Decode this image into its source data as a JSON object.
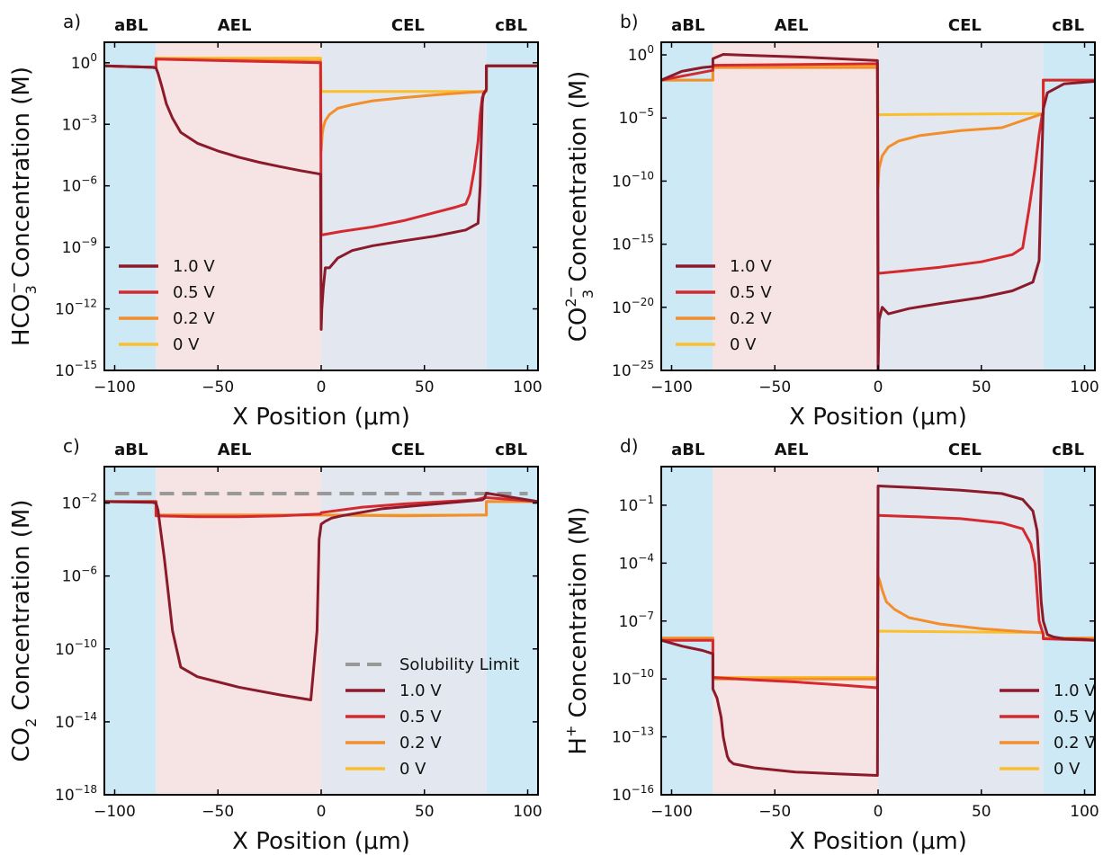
{
  "colors": {
    "bl_region": "#cde9f5",
    "ael_region": "#f6e4e4",
    "cel_region": "#e3e7f0",
    "v1_0": "#8b1a2b",
    "v0_5": "#d42a2f",
    "v0_2": "#f28e2b",
    "v0": "#fbbf2c",
    "solubility": "#999999"
  },
  "region_labels": {
    "abl": "aBL",
    "ael": "AEL",
    "cel": "CEL",
    "cbl": "cBL"
  },
  "x_ticks": [
    "−100",
    "−50",
    "0",
    "50",
    "100"
  ],
  "chart_data": [
    {
      "type": "line",
      "panel": "a)",
      "ylabel_main": "HCO",
      "ylabel_sub": "3",
      "ylabel_sup": "−",
      "ylabel_rest": " Concentration (M)",
      "xlabel": "X Position (μm)",
      "xlim": [
        -105,
        105
      ],
      "ylim_log10": [
        -15,
        1
      ],
      "yscale": "log",
      "y_ticks": [
        {
          "mant": "10",
          "exp": "0"
        },
        {
          "mant": "10",
          "exp": "−3"
        },
        {
          "mant": "10",
          "exp": "−6"
        },
        {
          "mant": "10",
          "exp": "−9"
        },
        {
          "mant": "10",
          "exp": "−12"
        },
        {
          "mant": "10",
          "exp": "−15"
        }
      ],
      "legend_position": "lower-left",
      "series": [
        {
          "name": "1.0 V",
          "x": [
            -105,
            -82,
            -80,
            -79,
            -77,
            -75,
            -72,
            -68,
            -60,
            -50,
            -40,
            -30,
            -20,
            -10,
            -0.3,
            0,
            0.3,
            1,
            2,
            4,
            8,
            15,
            25,
            40,
            55,
            70,
            76,
            77,
            78,
            78.5,
            80,
            80.01,
            105
          ],
          "y": [
            0.7,
            0.6,
            0.55,
            0.3,
            0.06,
            0.01,
            0.002,
            0.0004,
            0.00012,
            5e-05,
            2.5e-05,
            1.4e-05,
            8.7e-06,
            5.5e-06,
            3.7e-06,
            1e-13,
            1e-12,
            1e-11,
            1e-10,
            1e-10,
            3e-10,
            7e-10,
            1.2e-09,
            2.1e-09,
            3.5e-09,
            7e-09,
            1.5e-08,
            1e-06,
            0.01,
            0.03,
            0.05,
            0.7,
            0.7
          ]
        },
        {
          "name": "0.5 V",
          "x": [
            -105,
            -80,
            -80,
            -0.3,
            0,
            0.2,
            10,
            25,
            40,
            55,
            65,
            70,
            72,
            74,
            76,
            77,
            78,
            80,
            80.01,
            105
          ],
          "y": [
            0.7,
            0.6,
            1.5,
            1,
            4e-09,
            4e-09,
            6e-09,
            1e-08,
            2e-08,
            5e-08,
            9e-08,
            1.3e-07,
            4e-07,
            5e-06,
            0.00015,
            0.003,
            0.02,
            0.05,
            0.7,
            0.7
          ]
        },
        {
          "name": "0.2 V",
          "x": [
            -105,
            -80,
            -80,
            -0.3,
            0,
            0.5,
            1,
            2,
            4,
            8,
            15,
            25,
            40,
            55,
            70,
            80,
            80.01,
            105
          ],
          "y": [
            0.7,
            0.6,
            1.6,
            1.2,
            5e-05,
            0.0003,
            0.0007,
            0.0015,
            0.003,
            0.006,
            0.009,
            0.014,
            0.02,
            0.027,
            0.035,
            0.04,
            0.7,
            0.7
          ]
        },
        {
          "name": "0 V",
          "x": [
            -105,
            -80,
            -80,
            -0.3,
            0,
            80,
            80.01,
            105
          ],
          "y": [
            0.7,
            0.6,
            1.7,
            1.7,
            0.04,
            0.04,
            0.7,
            0.7
          ]
        }
      ]
    },
    {
      "type": "line",
      "panel": "b)",
      "ylabel_main": "CO",
      "ylabel_sub": "3",
      "ylabel_sup": "2−",
      "ylabel_rest": " Concentration (M)",
      "xlabel": "X Position (μm)",
      "xlim": [
        -105,
        105
      ],
      "ylim_log10": [
        -25,
        1
      ],
      "yscale": "log",
      "y_ticks": [
        {
          "mant": "10",
          "exp": "0"
        },
        {
          "mant": "10",
          "exp": "−5"
        },
        {
          "mant": "10",
          "exp": "−10"
        },
        {
          "mant": "10",
          "exp": "−15"
        },
        {
          "mant": "10",
          "exp": "−20"
        },
        {
          "mant": "10",
          "exp": "−25"
        }
      ],
      "legend_position": "lower-left",
      "series": [
        {
          "name": "1.0 V",
          "x": [
            -105,
            -95,
            -85,
            -80,
            -80,
            -75,
            -60,
            -40,
            -20,
            -0.3,
            0,
            0.5,
            2,
            5,
            15,
            30,
            50,
            65,
            75,
            78,
            79,
            80,
            82,
            90,
            105
          ],
          "y": [
            0.01,
            0.05,
            0.1,
            0.12,
            0.5,
            1.1,
            0.9,
            0.7,
            0.5,
            0.35,
            1e-25,
            1e-21,
            1e-20,
            3e-21,
            8e-21,
            2e-20,
            6e-20,
            2e-19,
            1e-18,
            5e-17,
            1e-10,
            5e-05,
            0.001,
            0.005,
            0.008
          ]
        },
        {
          "name": "0.5 V",
          "x": [
            -105,
            -80,
            -80,
            -0.3,
            0,
            1,
            10,
            30,
            50,
            65,
            70,
            73,
            76,
            78,
            79.5,
            80,
            80.01,
            105
          ],
          "y": [
            0.01,
            0.06,
            0.15,
            0.2,
            5e-18,
            5e-18,
            7e-18,
            1.5e-17,
            4e-17,
            1.5e-16,
            5e-16,
            5e-13,
            1e-09,
            5e-07,
            2e-05,
            2e-05,
            0.01,
            0.01
          ]
        },
        {
          "name": "0.2 V",
          "x": [
            -105,
            -80,
            -80,
            -0.3,
            0,
            0.5,
            2,
            5,
            10,
            20,
            40,
            60,
            80,
            80.01,
            105
          ],
          "y": [
            0.01,
            0.01,
            0.1,
            0.1,
            3e-11,
            1e-09,
            1e-08,
            5e-08,
            1.5e-07,
            4e-07,
            1e-06,
            1.7e-06,
            2.3e-05,
            0.01,
            0.01
          ]
        },
        {
          "name": "0 V",
          "x": [
            -105,
            -80,
            -80,
            -0.3,
            0,
            80,
            80.01,
            105
          ],
          "y": [
            0.01,
            0.01,
            0.12,
            0.12,
            1.8e-05,
            2.3e-05,
            0.01,
            0.01
          ]
        }
      ]
    },
    {
      "type": "line",
      "panel": "c)",
      "ylabel_main": "CO",
      "ylabel_sub": "2",
      "ylabel_sup": "",
      "ylabel_rest": " Concentration (M)",
      "xlabel": "X Position (μm)",
      "xlim": [
        -105,
        105
      ],
      "ylim_log10": [
        -18,
        0
      ],
      "yscale": "log",
      "y_ticks": [
        {
          "mant": "10",
          "exp": "−2"
        },
        {
          "mant": "10",
          "exp": "−6"
        },
        {
          "mant": "10",
          "exp": "−10"
        },
        {
          "mant": "10",
          "exp": "−14"
        },
        {
          "mant": "10",
          "exp": "−18"
        }
      ],
      "legend_position": "lower-right",
      "reference_line": {
        "name": "Solubility Limit",
        "y": 0.033
      },
      "series": [
        {
          "name": "1.0 V",
          "x": [
            -105,
            -82,
            -80,
            -79,
            -78,
            -76,
            -74,
            -72,
            -70,
            -68,
            -60,
            -40,
            -20,
            -5,
            -2,
            -1,
            0,
            2,
            5,
            10,
            30,
            60,
            78,
            79,
            80,
            105
          ],
          "y": [
            0.012,
            0.011,
            0.01,
            0.004,
            0.0005,
            1e-05,
            1e-07,
            1e-09,
            1e-10,
            1e-11,
            3e-12,
            8e-13,
            3e-13,
            1.6e-13,
            1e-09,
            0.0001,
            0.0007,
            0.001,
            0.0015,
            0.002,
            0.005,
            0.01,
            0.015,
            0.018,
            0.035,
            0.012
          ]
        },
        {
          "name": "0.5 V",
          "x": [
            -105,
            -80,
            -80,
            -60,
            -40,
            -20,
            -0.3,
            0,
            20,
            40,
            60,
            75,
            79,
            80,
            105
          ],
          "y": [
            0.012,
            0.012,
            0.002,
            0.0018,
            0.0018,
            0.002,
            0.0025,
            0.003,
            0.006,
            0.009,
            0.012,
            0.015,
            0.02,
            0.02,
            0.012
          ]
        },
        {
          "name": "0.2 V",
          "x": [
            -105,
            -80,
            -80,
            -0.3,
            0,
            40,
            75,
            80,
            80.01,
            105
          ],
          "y": [
            0.012,
            0.012,
            0.0022,
            0.0022,
            0.0022,
            0.002,
            0.0022,
            0.0022,
            0.012,
            0.012
          ]
        },
        {
          "name": "0 V",
          "x": [
            -105,
            -80,
            -80,
            -0.3,
            0,
            80,
            80.01,
            105
          ],
          "y": [
            0.012,
            0.012,
            0.0022,
            0.0022,
            0.0022,
            0.0022,
            0.012,
            0.012
          ]
        }
      ]
    },
    {
      "type": "line",
      "panel": "d)",
      "ylabel_main": "H",
      "ylabel_sub": "",
      "ylabel_sup": "+",
      "ylabel_rest": " Concentration (M)",
      "xlabel": "X Position (μm)",
      "xlim": [
        -105,
        105
      ],
      "ylim_log10": [
        -16,
        1
      ],
      "yscale": "log",
      "y_ticks": [
        {
          "mant": "10",
          "exp": "−1"
        },
        {
          "mant": "10",
          "exp": "−4"
        },
        {
          "mant": "10",
          "exp": "−7"
        },
        {
          "mant": "10",
          "exp": "−10"
        },
        {
          "mant": "10",
          "exp": "−13"
        },
        {
          "mant": "10",
          "exp": "−16"
        }
      ],
      "legend_position": "lower-right",
      "series": [
        {
          "name": "1.0 V",
          "x": [
            -105,
            -95,
            -85,
            -80,
            -80,
            -78,
            -76,
            -75,
            -74,
            -73,
            -72,
            -70,
            -60,
            -40,
            -20,
            -0.3,
            0,
            20,
            40,
            60,
            70,
            75,
            77,
            78,
            79,
            80,
            82,
            85,
            90,
            100,
            105
          ],
          "y": [
            1e-08,
            5e-09,
            3e-09,
            2e-09,
            3e-11,
            1e-11,
            1e-12,
            1e-13,
            3e-14,
            1e-14,
            6e-15,
            4e-15,
            2.5e-15,
            1.5e-15,
            1.2e-15,
            1e-15,
            1,
            0.8,
            0.6,
            0.4,
            0.2,
            0.05,
            0.005,
            0.0001,
            1e-06,
            1e-07,
            2e-08,
            1.5e-08,
            1.2e-08,
            1.1e-08,
            1e-08
          ]
        },
        {
          "name": "0.5 V",
          "x": [
            -105,
            -80,
            -80,
            -60,
            -40,
            -20,
            -0.3,
            0,
            20,
            40,
            60,
            70,
            74,
            76,
            78,
            80,
            80.01,
            105
          ],
          "y": [
            1e-08,
            1e-08,
            1.2e-10,
            9e-11,
            7e-11,
            5e-11,
            3.5e-11,
            0.03,
            0.025,
            0.02,
            0.012,
            0.006,
            0.001,
            0.0001,
            1e-07,
            2e-08,
            1.2e-08,
            1e-08
          ]
        },
        {
          "name": "0.2 V",
          "x": [
            -105,
            -80,
            -80,
            -0.3,
            0,
            0.5,
            1,
            2,
            4,
            8,
            15,
            30,
            50,
            70,
            80,
            80.01,
            105
          ],
          "y": [
            1.3e-08,
            1.3e-08,
            1e-10,
            1e-10,
            2e-05,
            1.5e-05,
            1e-05,
            4e-06,
            1e-06,
            4e-07,
            1.5e-07,
            7e-08,
            4e-08,
            2.8e-08,
            2.5e-08,
            1.3e-08,
            1.3e-08
          ]
        },
        {
          "name": "0 V",
          "x": [
            -105,
            -80,
            -80,
            -0.3,
            0,
            80,
            80.01,
            105
          ],
          "y": [
            1.3e-08,
            1.3e-08,
            1.2e-10,
            1.2e-10,
            3e-08,
            2.5e-08,
            1.3e-08,
            1.3e-08
          ]
        }
      ]
    }
  ]
}
